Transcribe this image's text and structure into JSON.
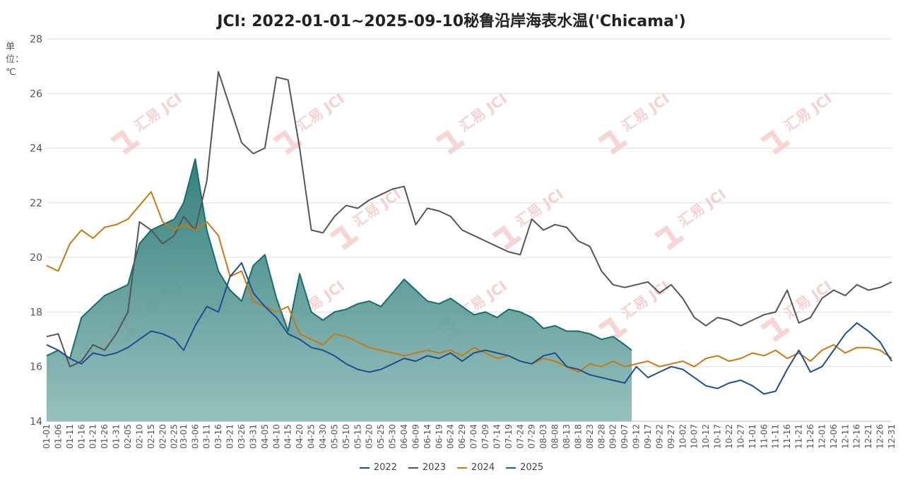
{
  "chart_data": {
    "type": "line",
    "title": "JCI: 2022-01-01~2025-09-10秘鲁沿岸海表水温('Chicama')",
    "ylabel": "单位：℃",
    "ylim": [
      14,
      28
    ],
    "yticks": [
      "14",
      "16",
      "18",
      "20",
      "22",
      "24",
      "26",
      "28"
    ],
    "grid": true,
    "legend_position": "bottom-center",
    "watermark": "汇易 JCI",
    "x_tick_labels": [
      "01-01",
      "01-06",
      "01-11",
      "01-16",
      "01-21",
      "01-26",
      "01-31",
      "02-05",
      "02-10",
      "02-15",
      "02-20",
      "02-25",
      "03-01",
      "03-06",
      "03-11",
      "03-16",
      "03-21",
      "03-26",
      "03-31",
      "04-05",
      "04-10",
      "04-15",
      "04-20",
      "04-25",
      "04-30",
      "05-05",
      "05-10",
      "05-15",
      "05-20",
      "05-25",
      "05-30",
      "06-04",
      "06-09",
      "06-14",
      "06-19",
      "06-24",
      "06-29",
      "07-04",
      "07-09",
      "07-14",
      "07-19",
      "07-24",
      "07-29",
      "08-03",
      "08-08",
      "08-13",
      "08-18",
      "08-23",
      "08-28",
      "09-02",
      "09-07",
      "09-12",
      "09-17",
      "09-22",
      "09-27",
      "10-02",
      "10-07",
      "10-12",
      "10-17",
      "10-22",
      "10-27",
      "11-01",
      "11-06",
      "11-11",
      "11-16",
      "11-21",
      "11-26",
      "12-01",
      "12-06",
      "12-11",
      "12-16",
      "12-21",
      "12-26",
      "12-31"
    ],
    "x_day_of_year": [
      1,
      6,
      11,
      16,
      21,
      26,
      31,
      36,
      41,
      46,
      51,
      56,
      60,
      65,
      70,
      75,
      80,
      85,
      90,
      95,
      100,
      105,
      110,
      115,
      120,
      125,
      130,
      135,
      140,
      145,
      150,
      155,
      160,
      165,
      170,
      175,
      180,
      185,
      190,
      195,
      200,
      205,
      210,
      215,
      220,
      225,
      230,
      235,
      240,
      245,
      250,
      255,
      260,
      265,
      270,
      275,
      280,
      285,
      290,
      295,
      300,
      305,
      310,
      315,
      320,
      325,
      330,
      335,
      340,
      345,
      350,
      355,
      360,
      365
    ],
    "series": [
      {
        "name": "2022",
        "color": "#1f4e8c",
        "area": false,
        "x": [
          1,
          6,
          11,
          16,
          21,
          26,
          31,
          36,
          41,
          46,
          51,
          56,
          60,
          65,
          70,
          75,
          80,
          85,
          90,
          95,
          100,
          105,
          110,
          115,
          120,
          125,
          130,
          135,
          140,
          145,
          150,
          155,
          160,
          165,
          170,
          175,
          180,
          185,
          190,
          195,
          200,
          205,
          210,
          215,
          220,
          225,
          230,
          235,
          240,
          245,
          250,
          255,
          260,
          265,
          270,
          275,
          280,
          285,
          290,
          295,
          300,
          305,
          310,
          315,
          320,
          325,
          330,
          335,
          340,
          345,
          350,
          355,
          360,
          365
        ],
        "y": [
          16.8,
          16.6,
          16.3,
          16.1,
          16.5,
          16.4,
          16.5,
          16.7,
          17.0,
          17.3,
          17.2,
          17.0,
          16.6,
          17.5,
          18.2,
          18.0,
          19.3,
          19.8,
          18.7,
          18.2,
          17.8,
          17.2,
          17.0,
          16.7,
          16.6,
          16.4,
          16.1,
          15.9,
          15.8,
          15.9,
          16.1,
          16.3,
          16.2,
          16.4,
          16.3,
          16.5,
          16.2,
          16.5,
          16.6,
          16.5,
          16.4,
          16.2,
          16.1,
          16.4,
          16.5,
          16.0,
          15.9,
          15.7,
          15.6,
          15.5,
          15.4,
          16.0,
          15.6,
          15.8,
          16.0,
          15.9,
          15.6,
          15.3,
          15.2,
          15.4,
          15.5,
          15.3,
          15.0,
          15.1,
          15.9,
          16.6,
          15.8,
          16.0,
          16.6,
          17.2,
          17.6,
          17.3,
          16.9,
          16.2
        ]
      },
      {
        "name": "2023",
        "color": "#555555",
        "area": false,
        "x": [
          1,
          6,
          11,
          16,
          21,
          26,
          31,
          36,
          41,
          46,
          51,
          56,
          60,
          65,
          70,
          75,
          80,
          85,
          90,
          95,
          100,
          105,
          110,
          115,
          120,
          125,
          130,
          135,
          140,
          145,
          150,
          155,
          160,
          165,
          170,
          175,
          180,
          185,
          190,
          195,
          200,
          205,
          210,
          215,
          220,
          225,
          230,
          235,
          240,
          245,
          250,
          255,
          260,
          265,
          270,
          275,
          280,
          285,
          290,
          295,
          300,
          305,
          310,
          315,
          320,
          325,
          330,
          335,
          340,
          345,
          350,
          355,
          360,
          365
        ],
        "y": [
          17.1,
          17.2,
          16.0,
          16.2,
          16.8,
          16.6,
          17.2,
          18.0,
          21.3,
          21.0,
          20.5,
          20.8,
          21.5,
          21.0,
          22.8,
          26.8,
          25.5,
          24.2,
          23.8,
          24.0,
          26.6,
          26.5,
          24.0,
          21.0,
          20.9,
          21.5,
          21.9,
          21.8,
          22.1,
          22.3,
          22.5,
          22.6,
          21.2,
          21.8,
          21.7,
          21.5,
          21.0,
          20.8,
          20.6,
          20.4,
          20.2,
          20.1,
          21.4,
          21.0,
          21.2,
          21.1,
          20.6,
          20.4,
          19.5,
          19.0,
          18.9,
          19.0,
          19.1,
          18.7,
          19.0,
          18.5,
          17.8,
          17.5,
          17.8,
          17.7,
          17.5,
          17.7,
          17.9,
          18.0,
          18.8,
          17.6,
          17.8,
          18.5,
          18.8,
          18.6,
          19.0,
          18.8,
          18.9,
          19.1
        ]
      },
      {
        "name": "2024",
        "color": "#c77a12",
        "area": false,
        "x": [
          1,
          6,
          11,
          16,
          21,
          26,
          31,
          36,
          41,
          46,
          51,
          56,
          60,
          65,
          70,
          75,
          80,
          85,
          90,
          95,
          100,
          105,
          110,
          115,
          120,
          125,
          130,
          135,
          140,
          145,
          150,
          155,
          160,
          165,
          170,
          175,
          180,
          185,
          190,
          195,
          200,
          205,
          210,
          215,
          220,
          225,
          230,
          235,
          240,
          245,
          250,
          255,
          260,
          265,
          270,
          275,
          280,
          285,
          290,
          295,
          300,
          305,
          310,
          315,
          320,
          325,
          330,
          335,
          340,
          345,
          350,
          355,
          360,
          365
        ],
        "y": [
          19.7,
          19.5,
          20.5,
          21.0,
          20.7,
          21.1,
          21.2,
          21.4,
          21.9,
          22.4,
          21.3,
          21.0,
          21.2,
          21.0,
          21.3,
          20.8,
          19.3,
          19.5,
          18.4,
          18.2,
          18.0,
          18.2,
          17.2,
          17.0,
          16.8,
          17.2,
          17.1,
          16.9,
          16.7,
          16.6,
          16.5,
          16.4,
          16.5,
          16.6,
          16.5,
          16.6,
          16.4,
          16.7,
          16.5,
          16.3,
          16.4,
          16.2,
          16.1,
          16.3,
          16.2,
          16.0,
          15.8,
          16.1,
          16.0,
          16.2,
          16.0,
          16.1,
          16.2,
          16.0,
          16.1,
          16.2,
          16.0,
          16.3,
          16.4,
          16.2,
          16.3,
          16.5,
          16.4,
          16.6,
          16.3,
          16.5,
          16.2,
          16.6,
          16.8,
          16.5,
          16.7,
          16.7,
          16.6,
          16.3
        ]
      },
      {
        "name": "2025",
        "color": "#166e6a",
        "area": true,
        "x": [
          1,
          6,
          11,
          16,
          21,
          26,
          31,
          36,
          41,
          46,
          51,
          56,
          60,
          65,
          70,
          75,
          80,
          85,
          90,
          95,
          100,
          105,
          110,
          115,
          120,
          125,
          130,
          135,
          140,
          145,
          150,
          155,
          160,
          165,
          170,
          175,
          180,
          185,
          190,
          195,
          200,
          205,
          210,
          215,
          220,
          225,
          230,
          235,
          240,
          245,
          250,
          253
        ],
        "y": [
          16.4,
          16.6,
          16.3,
          17.8,
          18.2,
          18.6,
          18.8,
          19.0,
          20.5,
          21.0,
          21.2,
          21.4,
          22.0,
          23.6,
          21.0,
          19.5,
          18.8,
          18.4,
          19.7,
          20.1,
          18.5,
          17.3,
          19.4,
          18.0,
          17.7,
          18.0,
          18.1,
          18.3,
          18.4,
          18.2,
          18.7,
          19.2,
          18.8,
          18.4,
          18.3,
          18.5,
          18.2,
          17.9,
          18.0,
          17.8,
          18.1,
          18.0,
          17.8,
          17.4,
          17.5,
          17.3,
          17.3,
          17.2,
          17.0,
          17.1,
          16.8,
          16.6
        ]
      }
    ]
  },
  "legend": [
    {
      "label": "2022",
      "color": "#1f4e8c"
    },
    {
      "label": "2023",
      "color": "#555555"
    },
    {
      "label": "2024",
      "color": "#c77a12"
    },
    {
      "label": "2025",
      "color": "#166e6a"
    }
  ]
}
